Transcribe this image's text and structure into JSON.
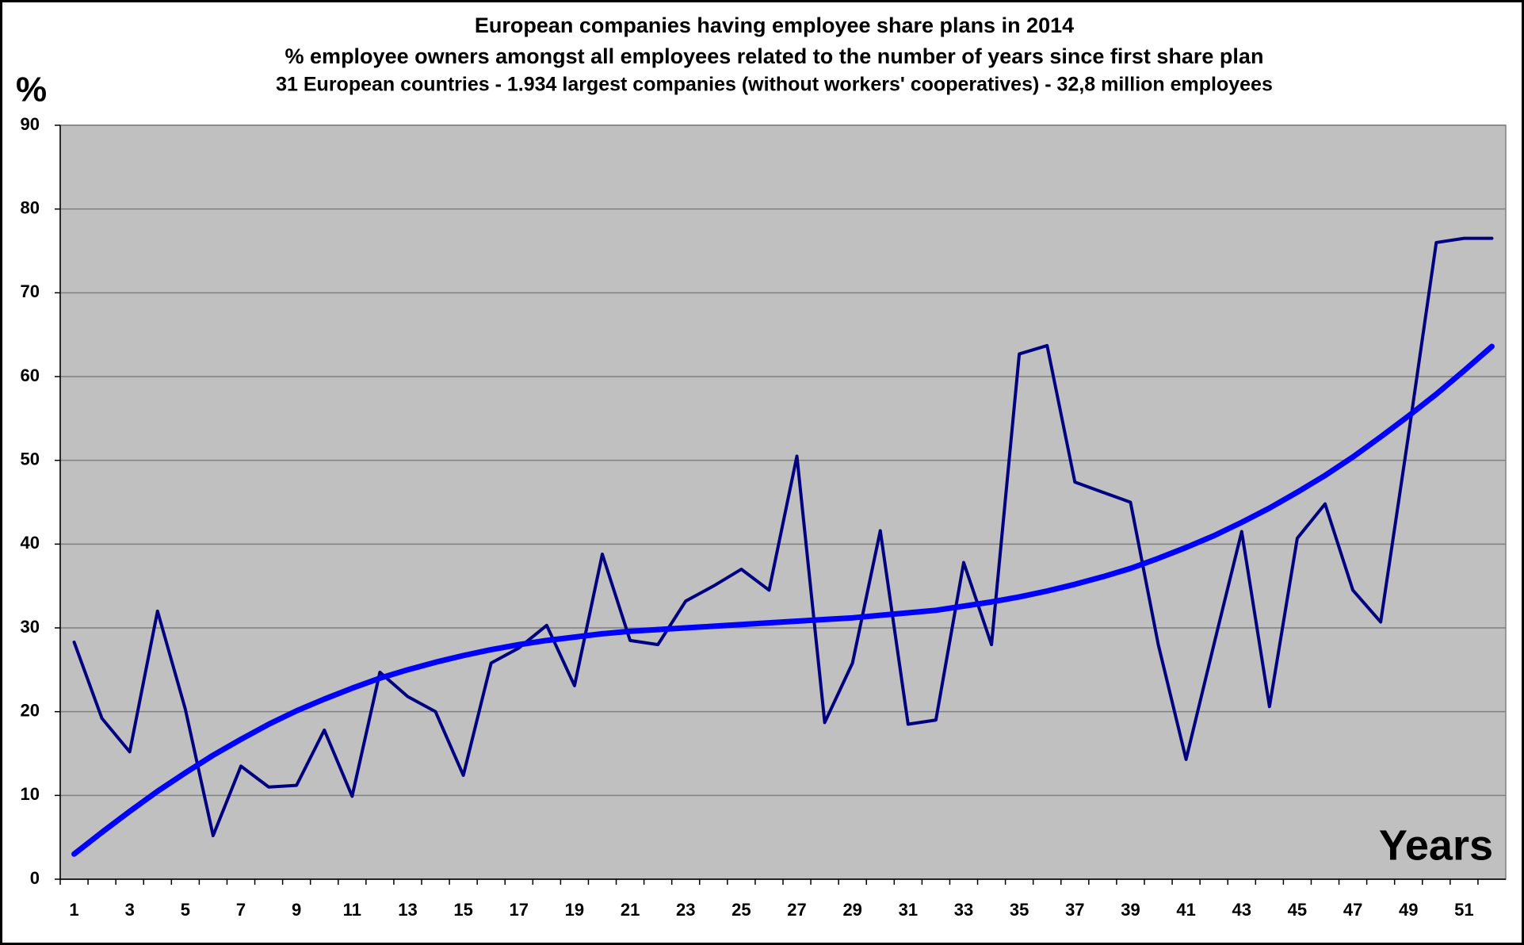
{
  "chart_data": {
    "type": "line",
    "title": "European companies having employee share plans in 2014",
    "subtitles": [
      "% employee owners amongst all employees related to the number of years since first share plan",
      "31 European countries - 1.934 largest companies (without workers' cooperatives) - 32,8 million employees"
    ],
    "y_label": "%",
    "x_label": "Years",
    "categories": [
      1,
      null,
      3,
      null,
      5,
      null,
      7,
      null,
      9,
      null,
      11,
      null,
      13,
      null,
      15,
      null,
      17,
      null,
      19,
      null,
      21,
      null,
      23,
      null,
      25,
      null,
      27,
      null,
      29,
      null,
      31,
      null,
      33,
      null,
      35,
      null,
      37,
      null,
      39,
      null,
      41,
      null,
      43,
      null,
      45,
      null,
      47,
      null,
      49,
      null,
      51,
      null
    ],
    "series": [
      {
        "color": "#000080",
        "values": [
          28.3,
          19.2,
          15.2,
          32,
          20.3,
          5.2,
          13.5,
          11,
          11.2,
          17.8,
          9.9,
          24.7,
          21.8,
          20,
          12.4,
          25.8,
          27.6,
          30.3,
          23.1,
          38.8,
          28.5,
          28,
          33.2,
          35,
          37,
          34.5,
          50.5,
          18.7,
          25.8,
          41.6,
          18.5,
          19,
          37.8,
          28,
          62.7,
          63.7,
          47.4,
          46.2,
          45,
          28,
          14.3,
          28,
          41.5,
          20.6,
          40.7,
          44.8,
          34.5,
          30.7,
          53,
          76,
          76.5,
          76.5
        ]
      },
      {
        "color": "#0000ff",
        "values": [
          3.0,
          5.6,
          8.1,
          10.5,
          12.7,
          14.8,
          16.7,
          18.5,
          20.1,
          21.5,
          22.8,
          24.0,
          25.0,
          25.9,
          26.7,
          27.4,
          28.0,
          28.5,
          28.9,
          29.3,
          29.6,
          29.8,
          30.0,
          30.2,
          30.4,
          30.6,
          30.8,
          31.0,
          31.2,
          31.5,
          31.8,
          32.1,
          32.6,
          33.1,
          33.7,
          34.4,
          35.2,
          36.1,
          37.1,
          38.3,
          39.6,
          41.0,
          42.6,
          44.3,
          46.2,
          48.2,
          50.4,
          52.8,
          55.3,
          57.9,
          60.7,
          63.6
        ]
      }
    ],
    "ylim": [
      0,
      90
    ],
    "yticks": [
      0,
      10,
      20,
      30,
      40,
      50,
      60,
      70,
      80,
      90
    ],
    "grid": true,
    "plot_background": "#c0c0c0"
  }
}
